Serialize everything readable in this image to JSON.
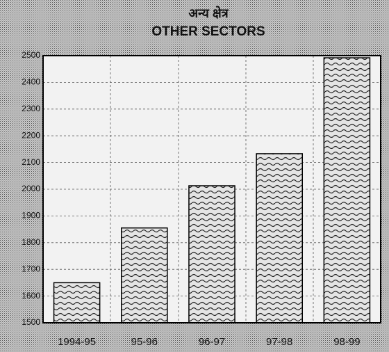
{
  "chart_data": {
    "type": "bar",
    "title": "अन्य क्षेत्र",
    "subtitle": "OTHER SECTORS",
    "categories": [
      "1994-95",
      "95-96",
      "96-97",
      "97-98",
      "98-99"
    ],
    "values": [
      1650,
      1855,
      2013,
      2133,
      2492
    ],
    "color": "#d8d8d8",
    "ylim": [
      1500,
      2500
    ],
    "yticks": [
      1500,
      1600,
      1700,
      1800,
      1900,
      2000,
      2100,
      2200,
      2300,
      2400,
      2500
    ],
    "grid": true
  }
}
